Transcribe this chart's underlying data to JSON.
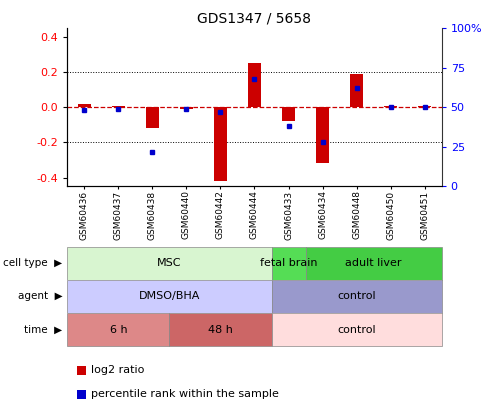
{
  "title": "GDS1347 / 5658",
  "samples": [
    "GSM60436",
    "GSM60437",
    "GSM60438",
    "GSM60440",
    "GSM60442",
    "GSM60444",
    "GSM60433",
    "GSM60434",
    "GSM60448",
    "GSM60450",
    "GSM60451"
  ],
  "log2_ratio": [
    0.02,
    0.01,
    -0.12,
    -0.01,
    -0.42,
    0.25,
    -0.08,
    -0.32,
    0.19,
    0.01,
    0.01
  ],
  "percentile_rank": [
    48,
    49,
    22,
    49,
    47,
    68,
    38,
    28,
    62,
    50,
    50
  ],
  "ylim_left": [
    -0.45,
    0.45
  ],
  "ylim_right": [
    0,
    100
  ],
  "yticks_left": [
    -0.4,
    -0.2,
    0.0,
    0.2,
    0.4
  ],
  "yticks_right": [
    0,
    25,
    50,
    75,
    100
  ],
  "ytick_labels_right": [
    "0",
    "25",
    "50",
    "75",
    "100%"
  ],
  "bar_color": "#cc0000",
  "dot_color": "#0000cc",
  "zero_line_color": "#cc0000",
  "grid_color": "#000000",
  "cell_type_groups": [
    {
      "label": "MSC",
      "start": 0,
      "end": 5,
      "color": "#d8f5d0",
      "border": "#888888"
    },
    {
      "label": "fetal brain",
      "start": 6,
      "end": 6,
      "color": "#55dd55",
      "border": "#888888"
    },
    {
      "label": "adult liver",
      "start": 7,
      "end": 10,
      "color": "#44cc44",
      "border": "#888888"
    }
  ],
  "agent_groups": [
    {
      "label": "DMSO/BHA",
      "start": 0,
      "end": 5,
      "color": "#ccccff",
      "border": "#888888"
    },
    {
      "label": "control",
      "start": 6,
      "end": 10,
      "color": "#9999cc",
      "border": "#888888"
    }
  ],
  "time_groups": [
    {
      "label": "6 h",
      "start": 0,
      "end": 2,
      "color": "#dd8888",
      "border": "#888888"
    },
    {
      "label": "48 h",
      "start": 3,
      "end": 5,
      "color": "#cc6666",
      "border": "#888888"
    },
    {
      "label": "control",
      "start": 6,
      "end": 10,
      "color": "#ffdddd",
      "border": "#888888"
    }
  ],
  "row_labels": [
    "cell type",
    "agent",
    "time"
  ],
  "legend_items": [
    {
      "color": "#cc0000",
      "label": "log2 ratio"
    },
    {
      "color": "#0000cc",
      "label": "percentile rank within the sample"
    }
  ],
  "bar_width": 0.4
}
